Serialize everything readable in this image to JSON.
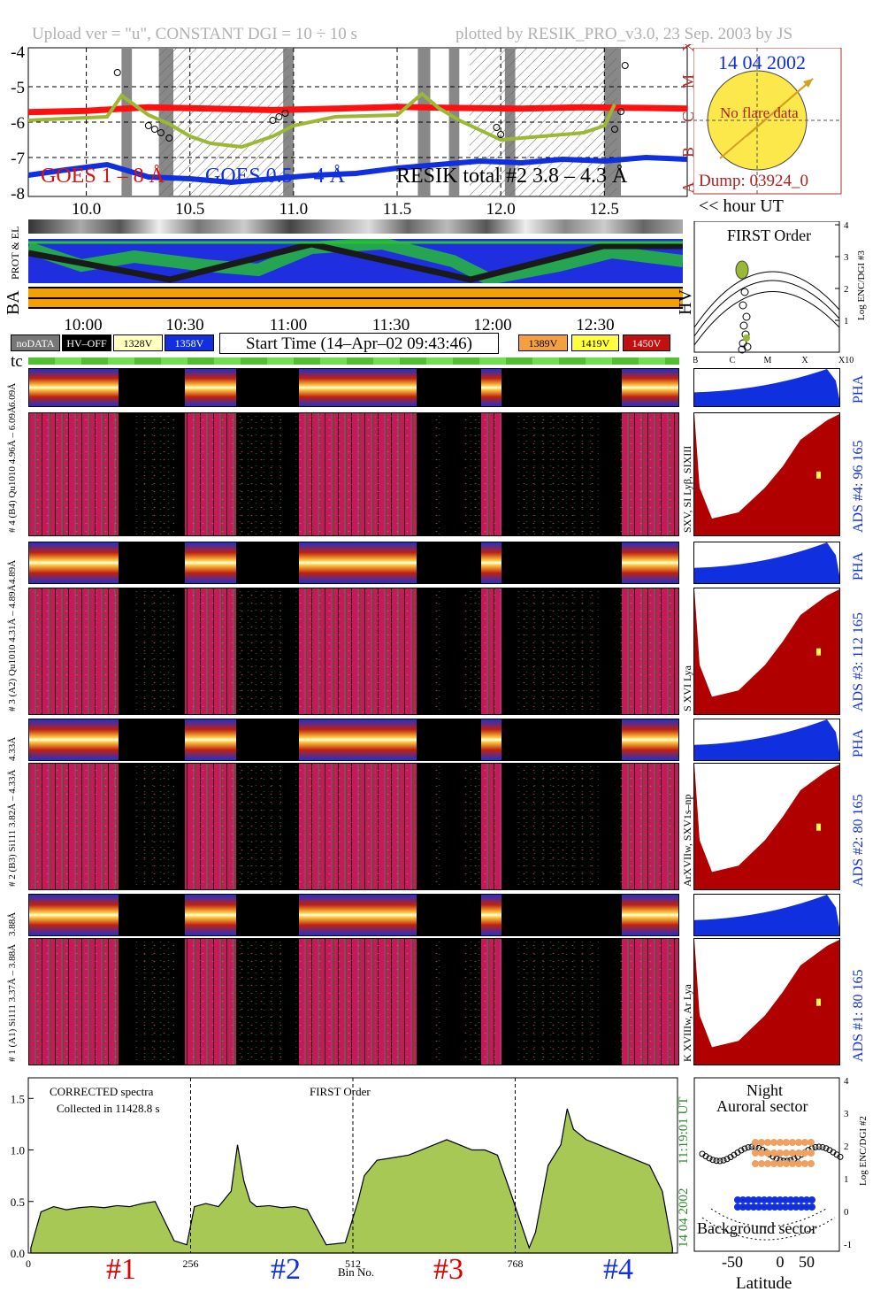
{
  "header": {
    "upload": "Upload ver = \"u\", CONSTANT  DGI =  10 ÷  10 s",
    "plotted": "plotted by RESIK_PRO_v3.0, 23 Sep. 2003 by JS"
  },
  "goes_panel": {
    "yticks": [
      "-4",
      "-5",
      "-6",
      "-7",
      "-8"
    ],
    "class_labels": [
      "X",
      "M",
      "C",
      "B",
      "A"
    ],
    "xticks": [
      "10.0",
      "10.5",
      "11.0",
      "11.5",
      "12.0",
      "12.5"
    ],
    "legend_goes18": "GOES 1 – 8 Å",
    "legend_goes054": "GOES 0.5 – 4 Å",
    "legend_resik": "RESIK total #2  3.8 – 4.3 Å",
    "hour_label": "<< hour UT",
    "colors": {
      "goes18": "#ff1010",
      "goes054": "#1030e0",
      "resik": "#9ab833"
    }
  },
  "sun_panel": {
    "date": "14 04 2002",
    "note": "No flare data",
    "dump": "Dump: 03924_0"
  },
  "strip_labels": {
    "prot_el": "PROT & EL",
    "ba": "BA",
    "hv": "HV"
  },
  "time_axis": [
    "10:00",
    "10:30",
    "11:00",
    "11:30",
    "12:00",
    "12:30"
  ],
  "hv_legend": {
    "nodata": "noDATA",
    "hvoff": "HV–OFF",
    "v1328": "1328V",
    "v1358": "1358V",
    "v1389": "1389V",
    "v1419": "1419V",
    "v1450": "1450V",
    "start_time": "Start Time (14–Apr–02 09:43:46)",
    "tc": "tc"
  },
  "first_order_panel": {
    "title": "FIRST Order",
    "yticks": [
      "1",
      "2",
      "3",
      "4"
    ],
    "xticks": [
      "B",
      "C",
      "M",
      "X",
      "X10"
    ],
    "ylabel": "Log ENC/DGI #3"
  },
  "channels": [
    {
      "id": "4",
      "range_label": "6.09Å",
      "left_label": "# 4 (B4) Qu1010 4.96Å – 6.09Å",
      "right_label": "SXV, SI Lyβ, SIXIII",
      "ads": "ADS #4:   96 165",
      "pha": "PHA"
    },
    {
      "id": "3",
      "range_label": "4.89Å",
      "left_label": "# 3 (A2) Qu1010  4.31Å – 4.89Å",
      "right_label": "S XVI Lya",
      "ads": "ADS #3:   112 165",
      "pha": "PHA"
    },
    {
      "id": "2",
      "range_label": "4.33Å",
      "left_label": "# 2 (B3) Si111  3.82Å – 4.33Å",
      "right_label": "ArXVIIw, SXV1s–np",
      "ads": "ADS #2:   80 165",
      "pha": "PHA"
    },
    {
      "id": "1",
      "range_label": "3.88Å",
      "left_label": "# 1 (A1) Si111  3.37Å – 3.88Å",
      "right_label": "K XVIIIw, Ar Lya",
      "ads": "ADS #1:   80 165",
      "pha": ""
    }
  ],
  "spectrum_panel": {
    "yticks": [
      "0.0",
      "0.5",
      "1.0",
      "1.5"
    ],
    "xticks": [
      "0",
      "256",
      "512",
      "768"
    ],
    "xlabel": "Bin No.",
    "note_line1": "CORRECTED spectra",
    "note_line2": "Collected in 11428.8 s",
    "first_order": "FIRST Order",
    "time_stamp": "11:19:01 UT",
    "date_stamp": "14 04 2002",
    "channel_labels": [
      "#1",
      "#2",
      "#3",
      "#4"
    ],
    "channel_colors": [
      "#dd0000",
      "#1030e0",
      "#dd0000",
      "#1030e0"
    ]
  },
  "latitude_panel": {
    "title1": "Night",
    "title2": "Auroral sector",
    "bottom": "Background sector",
    "xticks": [
      "-50",
      "0",
      "50"
    ],
    "xlabel": "Latitude",
    "yticks": [
      "-1",
      "0",
      "1",
      "2",
      "3",
      "4"
    ],
    "ylabel": "Log ENC/DGI #2"
  },
  "chart_data": {
    "type": "line",
    "title": "",
    "xlabel": "hour UT",
    "ylabel": "",
    "xlim": [
      9.72,
      12.9
    ],
    "ylim": [
      -8.1,
      -3.9
    ],
    "series": [
      {
        "name": "GOES 1 – 8 Å",
        "x": [
          9.72,
          10.0,
          10.3,
          10.6,
          10.9,
          11.2,
          11.5,
          11.8,
          12.1,
          12.4,
          12.7,
          12.9
        ],
        "values": [
          -5.72,
          -5.68,
          -5.58,
          -5.62,
          -5.66,
          -5.62,
          -5.57,
          -5.6,
          -5.62,
          -5.58,
          -5.6,
          -5.62
        ]
      },
      {
        "name": "GOES 0.5 – 4 Å",
        "x": [
          9.72,
          9.9,
          10.1,
          10.3,
          10.5,
          10.7,
          10.9,
          11.1,
          11.3,
          11.5,
          11.7,
          11.9,
          12.1,
          12.3,
          12.5,
          12.7,
          12.9
        ],
        "values": [
          -7.5,
          -7.35,
          -7.2,
          -7.55,
          -7.6,
          -7.7,
          -7.6,
          -7.5,
          -7.45,
          -7.3,
          -7.2,
          -7.1,
          -7.15,
          -7.05,
          -7.1,
          -7.0,
          -7.05
        ]
      },
      {
        "name": "RESIK total #2  3.8 – 4.3 Å",
        "x": [
          9.72,
          9.9,
          10.1,
          10.17,
          10.3,
          10.4,
          10.5,
          10.6,
          10.75,
          10.9,
          11.0,
          11.2,
          11.5,
          11.62,
          11.7,
          11.8,
          12.0,
          12.2,
          12.4,
          12.5,
          12.55
        ],
        "values": [
          -5.95,
          -5.9,
          -5.85,
          -5.25,
          -5.8,
          -6.05,
          -6.4,
          -6.6,
          -6.7,
          -6.4,
          -6.1,
          -5.85,
          -5.8,
          -5.2,
          -5.6,
          -5.95,
          -6.5,
          -6.4,
          -6.3,
          -6.1,
          -5.5
        ]
      }
    ],
    "spectrum": {
      "xlim": [
        0,
        1024
      ],
      "ylim": [
        0,
        1.7
      ],
      "bins": [
        4,
        20,
        40,
        60,
        80,
        100,
        120,
        140,
        160,
        180,
        200,
        230,
        250,
        262,
        280,
        300,
        320,
        330,
        340,
        350,
        360,
        380,
        400,
        420,
        440,
        470,
        500,
        520,
        530,
        550,
        570,
        600,
        620,
        640,
        660,
        680,
        700,
        720,
        740,
        760,
        790,
        800,
        820,
        840,
        850,
        860,
        880,
        900,
        920,
        940,
        960,
        980,
        1000,
        1016
      ],
      "values": [
        0.05,
        0.4,
        0.45,
        0.42,
        0.44,
        0.45,
        0.44,
        0.46,
        0.45,
        0.48,
        0.5,
        0.12,
        0.08,
        0.45,
        0.48,
        0.45,
        0.6,
        1.05,
        0.7,
        0.5,
        0.45,
        0.46,
        0.44,
        0.45,
        0.42,
        0.08,
        0.1,
        0.5,
        0.75,
        0.9,
        0.92,
        0.95,
        1.0,
        1.05,
        1.1,
        1.05,
        1.0,
        1.0,
        0.95,
        0.6,
        0.05,
        0.2,
        0.85,
        1.05,
        1.4,
        1.2,
        1.1,
        1.05,
        1.0,
        0.95,
        0.9,
        0.85,
        0.6,
        0.05
      ],
      "separators": [
        256,
        512,
        768
      ]
    },
    "bright_periods_hour": [
      [
        9.72,
        10.17
      ],
      [
        10.42,
        10.72
      ],
      [
        11.02,
        11.6
      ],
      [
        11.9,
        12.0
      ],
      [
        12.58,
        12.9
      ]
    ]
  }
}
